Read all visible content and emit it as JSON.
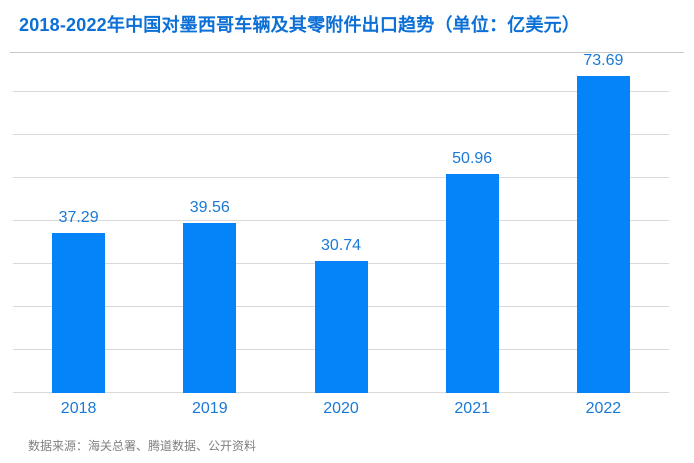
{
  "header": {
    "title": "2018-2022年中国对墨西哥车辆及其零附件出口趋势（单位：亿美元）"
  },
  "footer": {
    "source": "数据来源：海关总署、腾道数据、公开资料"
  },
  "chart_data": {
    "type": "bar",
    "title": "2018-2022年中国对墨西哥车辆及其零附件出口趋势（单位：亿美元）",
    "categories": [
      "2018",
      "2019",
      "2020",
      "2021",
      "2022"
    ],
    "values": [
      37.29,
      39.56,
      30.74,
      50.96,
      73.69
    ],
    "value_labels": [
      "37.29",
      "39.56",
      "30.74",
      "50.96",
      "73.69"
    ],
    "xlabel": "",
    "ylabel": "",
    "ylim": [
      0,
      80
    ],
    "gridline_step": 10,
    "grid": true,
    "y_tick_labels_visible": false,
    "legend_position": "none",
    "bar_color": "#0583f8",
    "data_label_color": "#1a79d6",
    "x_tick_label_color": "#1a79d6",
    "title_color": "#0c6fd6",
    "gridline_color": "#d9d9d9",
    "source": "数据来源：海关总署、腾道数据、公开资料"
  }
}
